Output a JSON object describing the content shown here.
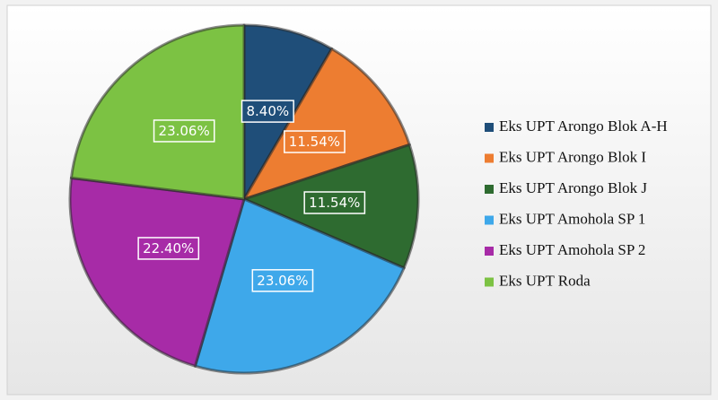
{
  "chart_data": {
    "type": "pie",
    "categories": [
      "Eks UPT Arongo Blok A-H",
      "Eks UPT Arongo Blok I",
      "Eks UPT Arongo Blok J",
      "Eks UPT Amohola SP 1",
      "Eks UPT Amohola SP 2",
      "Eks UPT Roda"
    ],
    "values": [
      8.4,
      11.54,
      11.54,
      23.06,
      22.4,
      23.06
    ],
    "value_labels": [
      "8.40%",
      "11.54%",
      "11.54%",
      "23.06%",
      "22.40%",
      "23.06%"
    ],
    "colors": [
      "#1f4e79",
      "#ed7d31",
      "#2e6b30",
      "#3ea8ea",
      "#a72ba7",
      "#7cc243"
    ],
    "legend": "right"
  }
}
